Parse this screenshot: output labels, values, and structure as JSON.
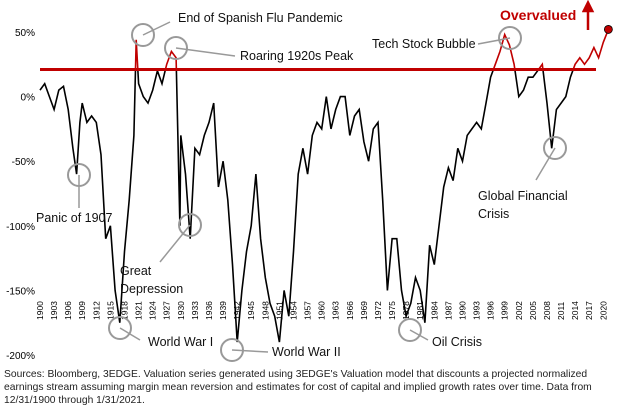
{
  "chart_data": {
    "type": "line",
    "x": [
      1900,
      1901,
      1902,
      1903,
      1904,
      1905,
      1906,
      1907,
      1907.8,
      1908.5,
      1909,
      1910,
      1911,
      1912,
      1913,
      1914,
      1915,
      1916,
      1917,
      1918,
      1919,
      1920,
      1920.5,
      1921,
      1922,
      1923,
      1924,
      1925,
      1926,
      1927,
      1928,
      1929,
      1929.8,
      1930,
      1931,
      1932,
      1933,
      1934,
      1935,
      1936,
      1937,
      1938,
      1939,
      1940,
      1941,
      1942,
      1943,
      1944,
      1945,
      1946,
      1947,
      1948,
      1949,
      1950,
      1951,
      1952,
      1953,
      1954,
      1955,
      1956,
      1957,
      1958,
      1959,
      1960,
      1961,
      1962,
      1963,
      1964,
      1965,
      1966,
      1967,
      1968,
      1969,
      1970,
      1971,
      1972,
      1973,
      1974,
      1975,
      1976,
      1977,
      1978,
      1979,
      1980,
      1981,
      1982,
      1983,
      1984,
      1985,
      1986,
      1987,
      1988,
      1989,
      1990,
      1991,
      1992,
      1993,
      1994,
      1995,
      1996,
      1997,
      1998,
      1999,
      2000,
      2001,
      2002,
      2003,
      2004,
      2005,
      2006,
      2007,
      2008,
      2009,
      2010,
      2011,
      2012,
      2013,
      2014,
      2015,
      2016,
      2017,
      2018,
      2019,
      2020,
      2021.08
    ],
    "values": [
      5,
      10,
      0,
      -10,
      5,
      8,
      -10,
      -40,
      -60,
      -20,
      -5,
      -20,
      -15,
      -20,
      -45,
      -110,
      -100,
      -150,
      -175,
      -120,
      -80,
      -30,
      44,
      10,
      0,
      -5,
      5,
      20,
      10,
      25,
      35,
      30,
      -100,
      -30,
      -60,
      -110,
      -40,
      -45,
      -30,
      -20,
      -5,
      -70,
      -50,
      -80,
      -130,
      -190,
      -150,
      -120,
      -100,
      -60,
      -110,
      -140,
      -160,
      -170,
      -190,
      -150,
      -170,
      -120,
      -60,
      -40,
      -60,
      -30,
      -20,
      -25,
      0,
      -25,
      -10,
      0,
      0,
      -30,
      -15,
      -10,
      -35,
      -50,
      -25,
      -20,
      -80,
      -150,
      -110,
      -110,
      -150,
      -170,
      -160,
      -140,
      -150,
      -175,
      -115,
      -130,
      -100,
      -70,
      -55,
      -65,
      -40,
      -50,
      -30,
      -25,
      -20,
      -25,
      -5,
      15,
      25,
      35,
      48,
      40,
      25,
      0,
      5,
      15,
      15,
      20,
      25,
      -5,
      -40,
      -10,
      -5,
      0,
      15,
      25,
      30,
      25,
      30,
      38,
      30,
      42,
      52
    ],
    "color": "#000000",
    "highlight_color": "#c00000",
    "threshold": 21,
    "xlim": [
      1900,
      2021
    ],
    "xticks": [
      1900,
      1903,
      1906,
      1909,
      1912,
      1915,
      1918,
      1921,
      1924,
      1927,
      1930,
      1933,
      1936,
      1939,
      1942,
      1945,
      1948,
      1951,
      1954,
      1957,
      1960,
      1963,
      1966,
      1969,
      1972,
      1975,
      1978,
      1981,
      1984,
      1987,
      1990,
      1993,
      1996,
      1999,
      2002,
      2005,
      2008,
      2011,
      2014,
      2017,
      2020
    ],
    "ylim": [
      -200,
      60
    ],
    "yticks": [
      {
        "value": 50,
        "label": "50%"
      },
      {
        "value": 0,
        "label": "0%"
      },
      {
        "value": -50,
        "label": "-50%"
      },
      {
        "value": -100,
        "label": "-100%"
      },
      {
        "value": -150,
        "label": "-150%"
      },
      {
        "value": -200,
        "label": "-200%"
      }
    ],
    "annotations": [
      {
        "lines": [
          "Panic of 1907"
        ]
      },
      {
        "lines": [
          "End of Spanish Flu Pandemic"
        ]
      },
      {
        "lines": [
          "Roaring 1920s Peak"
        ]
      },
      {
        "lines": [
          "World War I"
        ]
      },
      {
        "lines": [
          "Great",
          "Depression"
        ]
      },
      {
        "lines": [
          "World War II"
        ]
      },
      {
        "lines": [
          "Tech Stock Bubble"
        ]
      },
      {
        "lines": [
          "Global Financial",
          "Crisis"
        ]
      },
      {
        "lines": [
          "Oil Crisis"
        ]
      }
    ],
    "overvalued_label": "Overvalued",
    "source": "Sources: Bloomberg, 3EDGE.  Valuation series generated using 3EDGE's Valuation model that discounts a projected normalized earnings stream assuming margin mean reversion and estimates for cost of capital and implied growth rates over time. Data from 12/31/1900 through 1/31/2021."
  }
}
